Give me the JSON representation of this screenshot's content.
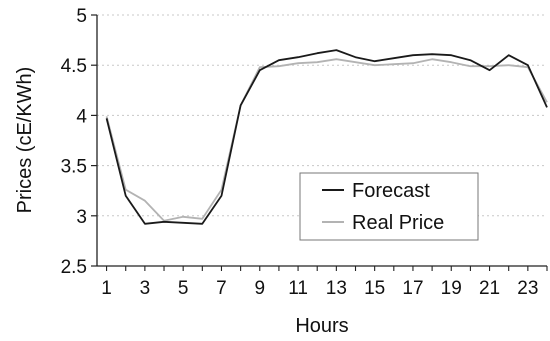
{
  "chart_data": {
    "type": "line",
    "title": "",
    "xlabel": "Hours",
    "ylabel": "Prices (cE/KWh)",
    "x": [
      1,
      2,
      3,
      4,
      5,
      6,
      7,
      8,
      9,
      10,
      11,
      12,
      13,
      14,
      15,
      16,
      17,
      18,
      19,
      20,
      21,
      22,
      23,
      24
    ],
    "xticks": [
      "1",
      "3",
      "5",
      "7",
      "9",
      "11",
      "13",
      "15",
      "17",
      "19",
      "21",
      "23"
    ],
    "yticks": [
      "2.5",
      "3",
      "3.5",
      "4",
      "4.5",
      "5"
    ],
    "ylim": [
      2.5,
      5
    ],
    "xlim": [
      0.5,
      24
    ],
    "grid": "horizontal-dotted",
    "legend_position": "lower-right-center",
    "series": [
      {
        "name": "Forecast",
        "color": "#1a1a1a",
        "values": [
          3.97,
          3.2,
          2.92,
          2.94,
          2.93,
          2.92,
          3.2,
          4.1,
          4.45,
          4.55,
          4.58,
          4.62,
          4.65,
          4.58,
          4.54,
          4.57,
          4.6,
          4.61,
          4.6,
          4.55,
          4.45,
          4.6,
          4.5,
          4.08
        ]
      },
      {
        "name": "Real Price",
        "color": "#b3b3b3",
        "values": [
          3.99,
          3.26,
          3.15,
          2.95,
          2.99,
          2.97,
          3.26,
          4.1,
          4.48,
          4.49,
          4.52,
          4.53,
          4.56,
          4.53,
          4.5,
          4.51,
          4.52,
          4.56,
          4.53,
          4.49,
          4.49,
          4.5,
          4.48,
          4.13
        ]
      }
    ]
  }
}
